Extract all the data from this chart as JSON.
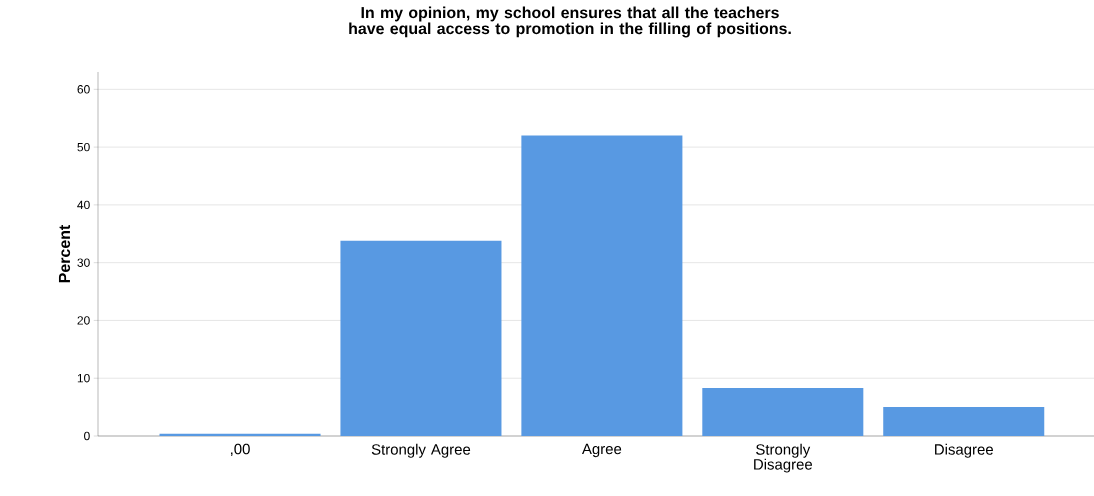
{
  "chart_data": {
    "type": "bar",
    "title": "In my opinion, my school ensures that all the teachers have equal access to promotion in the filling of positions.",
    "ylabel": "Percent",
    "categories": [
      ",00",
      "Strongly Agree",
      "Agree",
      "Strongly Disagree",
      "Disagree"
    ],
    "values": [
      0.4,
      33.8,
      52.0,
      8.3,
      5.0
    ],
    "color": "#5899e2",
    "ylim": [
      0,
      63
    ],
    "yticks": [
      0,
      10,
      20,
      30,
      40,
      50,
      60
    ],
    "grid": "y"
  }
}
